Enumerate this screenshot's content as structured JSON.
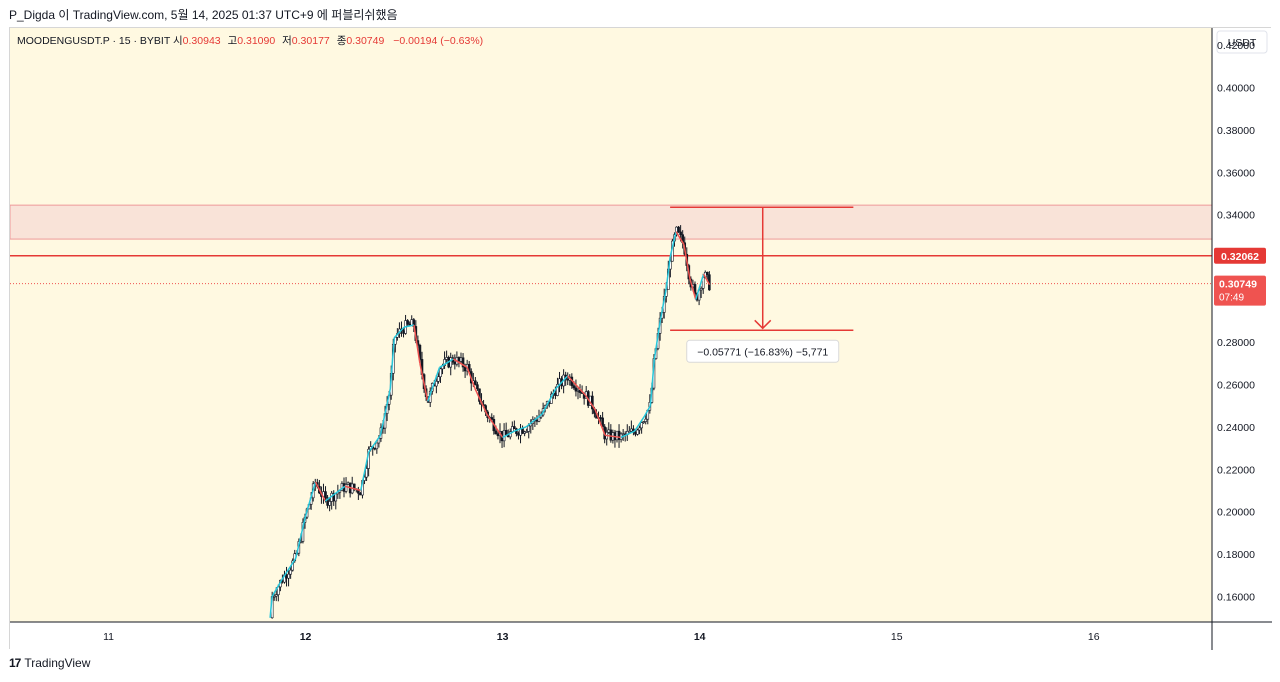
{
  "header": {
    "text": "P_Digda 이 TradingView.com, 5월 14, 2025 01:37 UTC+9 에 퍼블리쉬했음"
  },
  "legend": {
    "symbol": "MOODENGUSDT.P · 15 · BYBIT",
    "open_label": "시",
    "open": "0.30943",
    "high_label": "고",
    "high": "0.31090",
    "low_label": "저",
    "low": "0.30177",
    "close_label": "종",
    "close": "0.30749",
    "change": "−0.00194 (−0.63%)"
  },
  "axis": {
    "currency": "USDT"
  },
  "price_tags": {
    "level": "0.32062",
    "last": "0.30749",
    "countdown": "07:49"
  },
  "measure": {
    "label": "−0.05771 (−16.83%) −5,771"
  },
  "footer": {
    "brand": "TradingView"
  },
  "colors": {
    "background": "#fff9e1",
    "up": "#26a69a",
    "down": "#ef5350",
    "candle": "#131722",
    "level_line": "#e53935",
    "zone_fill": "#f9e3d8"
  },
  "chart_data": {
    "type": "candlestick",
    "title": "MOODENGUSDT.P · 15 · BYBIT",
    "ylabel": "USDT",
    "ylim": [
      0.148,
      0.428
    ],
    "xlim": [
      10.5,
      16.6
    ],
    "y_ticks": [
      "0.42000",
      "0.40000",
      "0.38000",
      "0.36000",
      "0.34000",
      "0.28000",
      "0.26000",
      "0.24000",
      "0.22000",
      "0.20000",
      "0.18000",
      "0.16000"
    ],
    "x_ticks": [
      {
        "value": 11,
        "label": "11"
      },
      {
        "value": 12,
        "label": "12"
      },
      {
        "value": 13,
        "label": "13"
      },
      {
        "value": 14,
        "label": "14"
      },
      {
        "value": 15,
        "label": "15"
      },
      {
        "value": 16,
        "label": "16"
      }
    ],
    "resistance_zone": [
      0.3285,
      0.3445
    ],
    "horizontal_levels": [
      0.32062
    ],
    "last_price": 0.30749,
    "measure": {
      "x_start": 13.85,
      "x_end": 14.78,
      "from": 0.3435,
      "to": 0.2855,
      "arrow_x": 14.32
    },
    "price_path": [
      [
        11.82,
        0.15
      ],
      [
        11.83,
        0.16
      ],
      [
        11.88,
        0.168
      ],
      [
        11.95,
        0.178
      ],
      [
        12.0,
        0.198
      ],
      [
        12.05,
        0.214
      ],
      [
        12.1,
        0.205
      ],
      [
        12.2,
        0.212
      ],
      [
        12.28,
        0.21
      ],
      [
        12.32,
        0.228
      ],
      [
        12.38,
        0.236
      ],
      [
        12.43,
        0.258
      ],
      [
        12.45,
        0.282
      ],
      [
        12.5,
        0.287
      ],
      [
        12.55,
        0.288
      ],
      [
        12.58,
        0.27
      ],
      [
        12.62,
        0.252
      ],
      [
        12.68,
        0.268
      ],
      [
        12.75,
        0.272
      ],
      [
        12.82,
        0.268
      ],
      [
        12.86,
        0.258
      ],
      [
        12.92,
        0.246
      ],
      [
        13.0,
        0.235
      ],
      [
        13.06,
        0.238
      ],
      [
        13.12,
        0.24
      ],
      [
        13.2,
        0.246
      ],
      [
        13.27,
        0.258
      ],
      [
        13.33,
        0.264
      ],
      [
        13.42,
        0.255
      ],
      [
        13.47,
        0.248
      ],
      [
        13.52,
        0.236
      ],
      [
        13.6,
        0.235
      ],
      [
        13.67,
        0.238
      ],
      [
        13.72,
        0.245
      ],
      [
        13.75,
        0.25
      ],
      [
        13.77,
        0.272
      ],
      [
        13.8,
        0.29
      ],
      [
        13.83,
        0.305
      ],
      [
        13.85,
        0.32
      ],
      [
        13.88,
        0.332
      ],
      [
        13.92,
        0.326
      ],
      [
        13.95,
        0.31
      ],
      [
        13.98,
        0.3
      ],
      [
        14.02,
        0.312
      ],
      [
        14.05,
        0.307
      ]
    ]
  }
}
